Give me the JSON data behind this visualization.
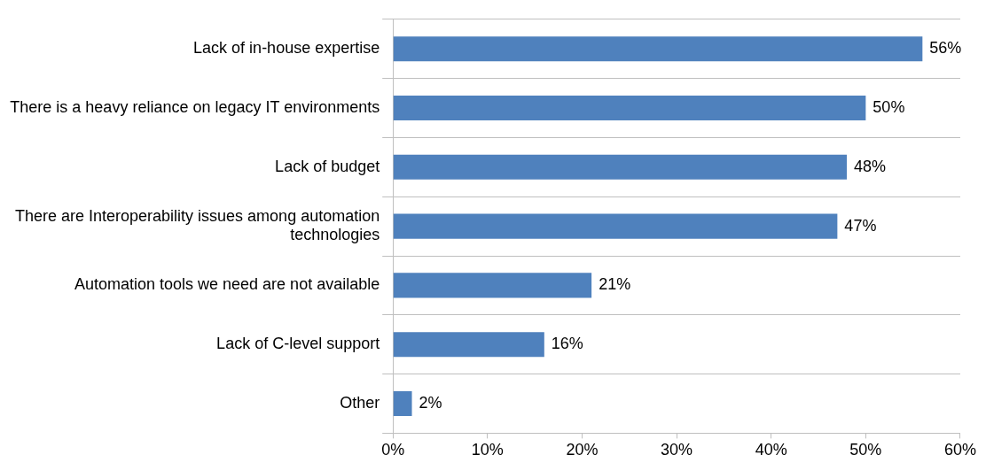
{
  "chart_data": {
    "type": "bar",
    "orientation": "horizontal",
    "categories": [
      "Lack of in-house expertise",
      "There is a heavy reliance on legacy IT environments",
      "Lack of budget",
      "There are Interoperability issues among automation technologies",
      "Automation tools we need are not available",
      "Lack of C-level support",
      "Other"
    ],
    "values": [
      56,
      50,
      48,
      47,
      21,
      16,
      2
    ],
    "value_labels": [
      "56%",
      "50%",
      "48%",
      "47%",
      "21%",
      "16%",
      "2%"
    ],
    "color": "#4f81bd",
    "xlim": [
      0,
      60
    ],
    "xticks": [
      {
        "value": 0,
        "label": "0%"
      },
      {
        "value": 10,
        "label": "10%"
      },
      {
        "value": 20,
        "label": "20%"
      },
      {
        "value": 30,
        "label": "30%"
      },
      {
        "value": 40,
        "label": "40%"
      },
      {
        "value": 50,
        "label": "50%"
      },
      {
        "value": 60,
        "label": "60%"
      }
    ],
    "grid": "y",
    "legend": false
  }
}
